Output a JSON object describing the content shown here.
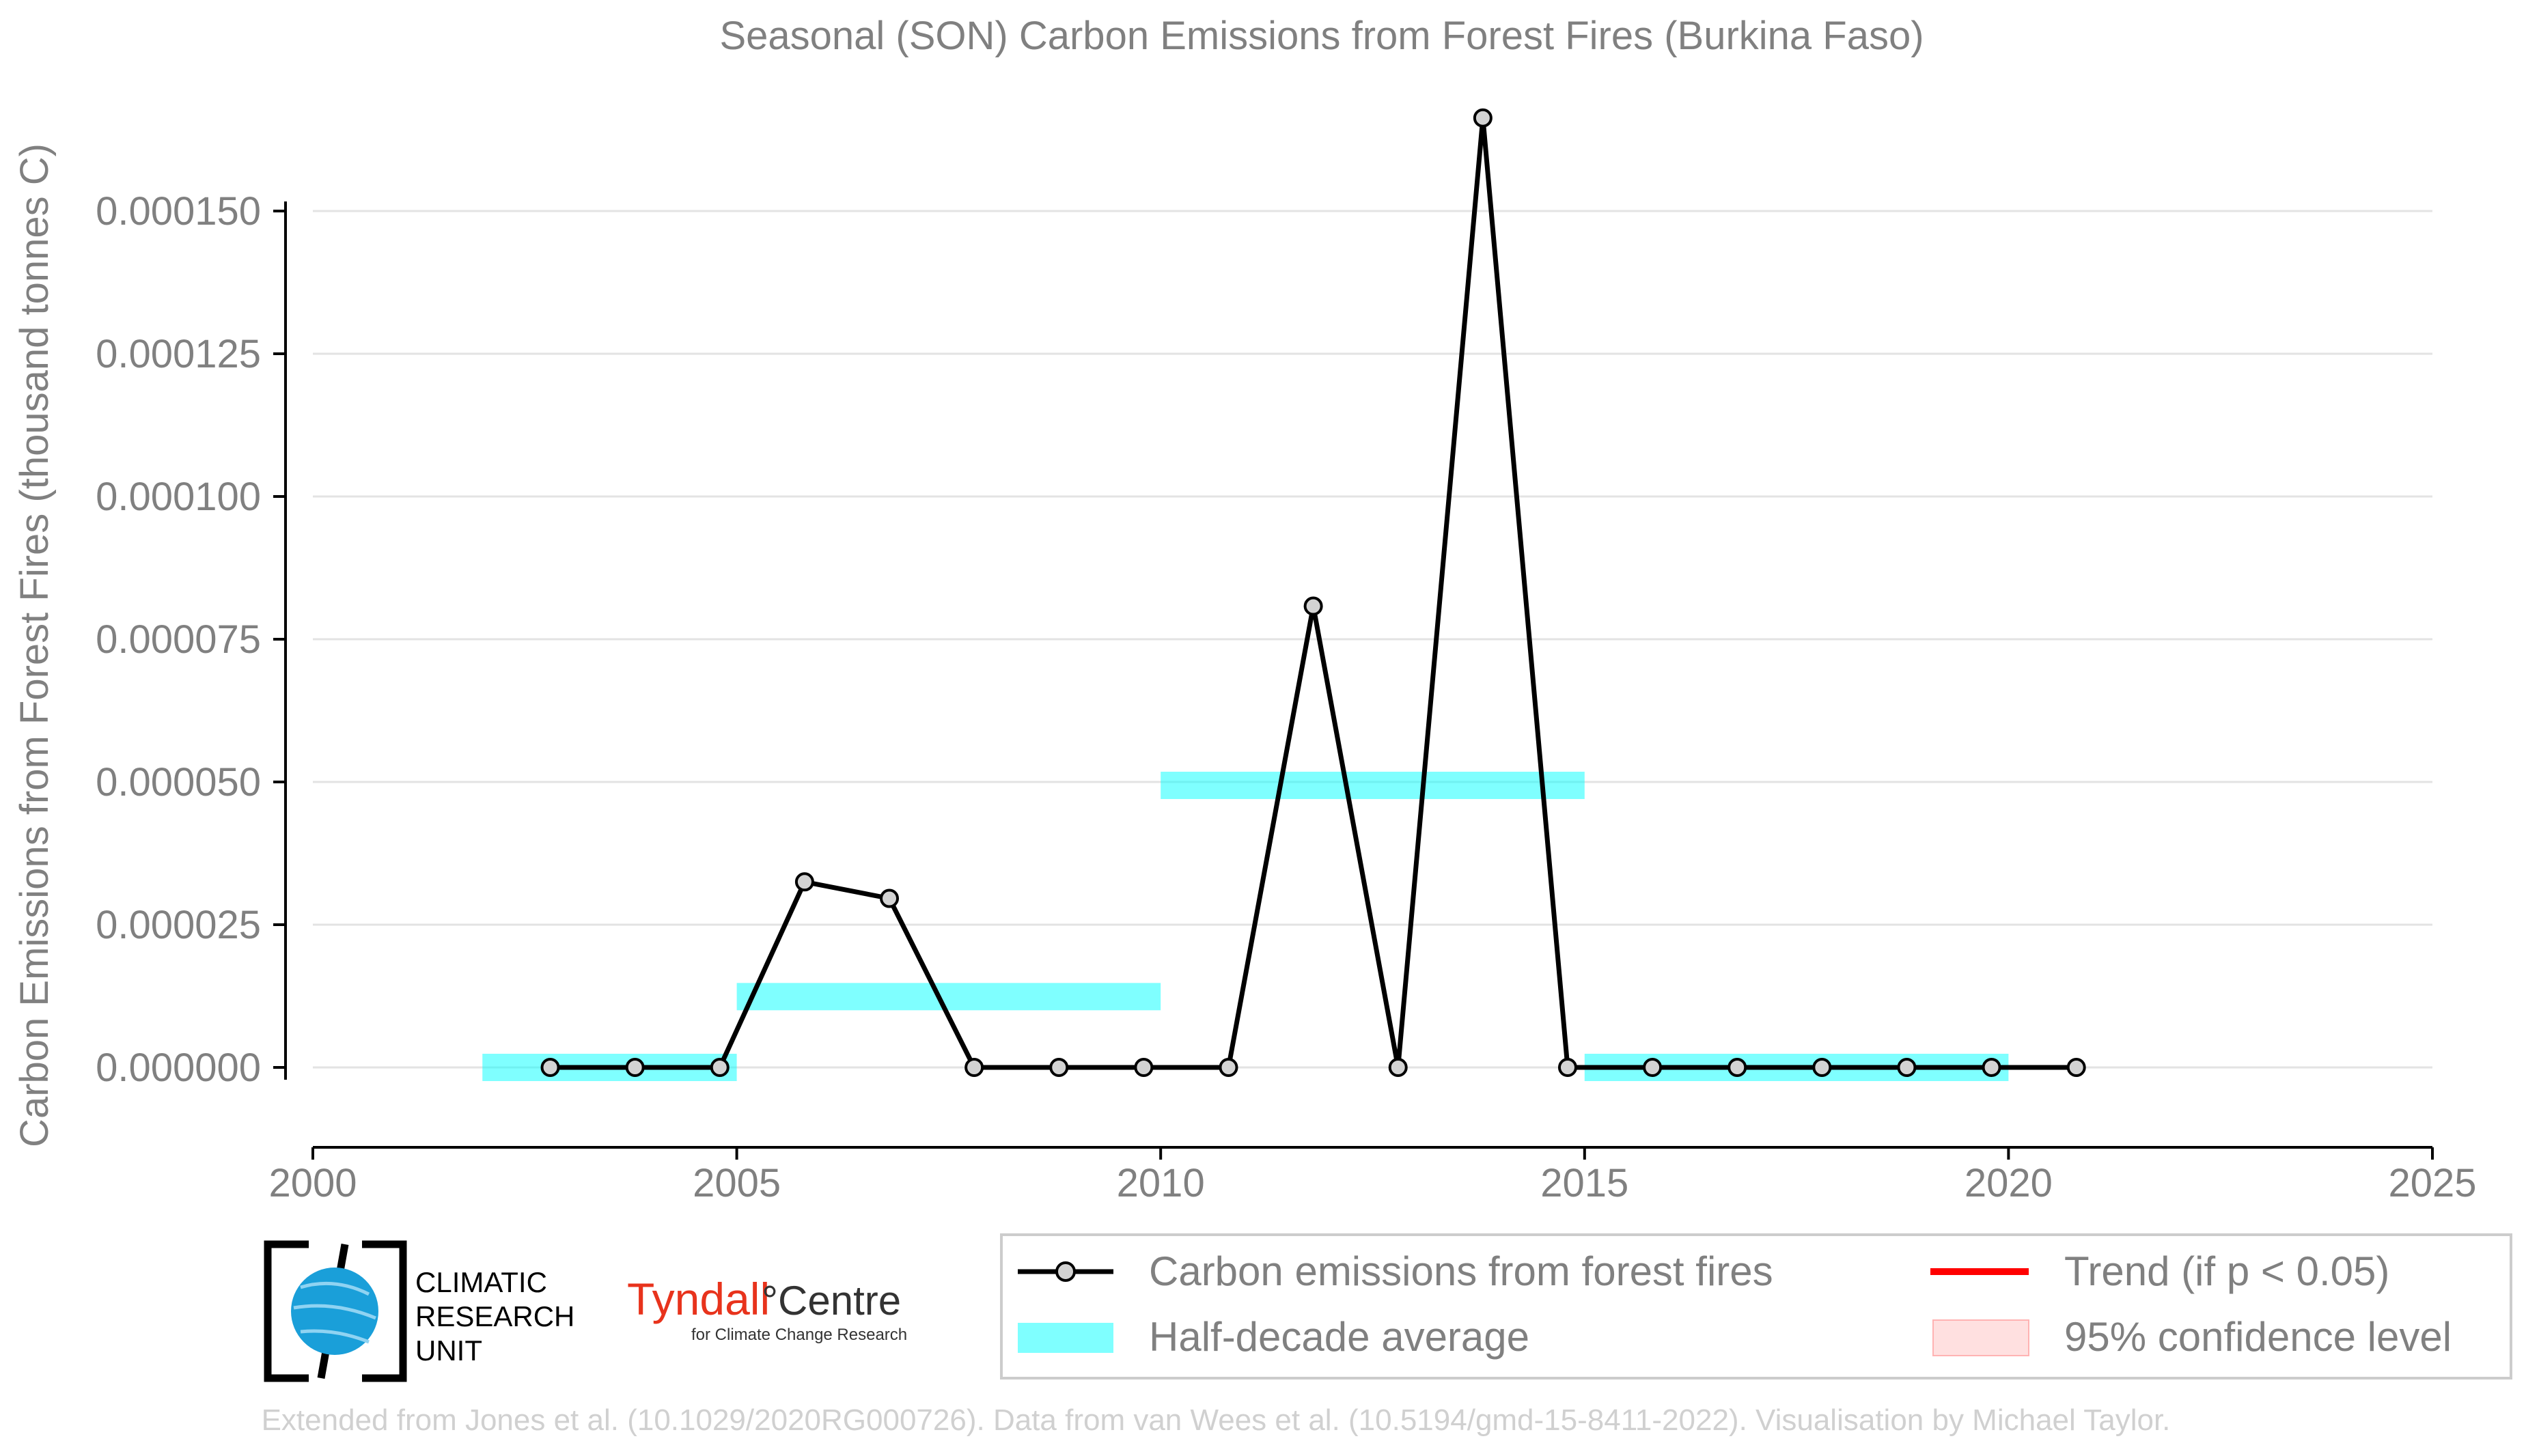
{
  "chart_data": {
    "type": "line",
    "title": "Seasonal (SON) Carbon Emissions from Forest Fires (Burkina Faso)",
    "ylabel": "Carbon Emissions from Forest Fires (thousand tonnes C)",
    "xlabel": "",
    "xlim": [
      2000,
      2025
    ],
    "ylim": [
      -1.3e-05,
      0.000167
    ],
    "x_ticks": [
      2000,
      2005,
      2010,
      2015,
      2020,
      2025
    ],
    "x_tick_labels": [
      "2000",
      "2005",
      "2010",
      "2015",
      "2020",
      "2025"
    ],
    "y_ticks": [
      0,
      2.5e-05,
      5e-05,
      7.5e-05,
      0.0001,
      0.000125,
      0.00015
    ],
    "y_tick_labels": [
      "0.000000",
      "0.000025",
      "0.000050",
      "0.000075",
      "0.000100",
      "0.000125",
      "0.000150"
    ],
    "grid": "horizontal",
    "series": [
      {
        "name": "Carbon emissions from forest fires",
        "color": "#000000",
        "marker_fill": "#d3d3d3",
        "x": [
          2002.8,
          2003.8,
          2004.8,
          2005.8,
          2006.8,
          2007.8,
          2008.8,
          2009.8,
          2010.8,
          2011.8,
          2012.8,
          2013.8,
          2014.8,
          2015.8,
          2016.8,
          2017.8,
          2018.8,
          2019.8,
          2020.8
        ],
        "values": [
          0,
          0,
          0,
          3.25e-05,
          2.96e-05,
          0,
          0,
          0,
          0,
          8.08e-05,
          0,
          0.0001663,
          0,
          0,
          0,
          0,
          0,
          0,
          0
        ]
      }
    ],
    "half_decade_average": {
      "name": "Half-decade average",
      "color": "#00ffff",
      "segments": [
        {
          "x0": 2002,
          "x1": 2005,
          "y": 0
        },
        {
          "x0": 2005,
          "x1": 2010,
          "y": 1.24e-05
        },
        {
          "x0": 2010,
          "x1": 2015,
          "y": 4.94e-05
        },
        {
          "x0": 2015,
          "x1": 2020,
          "y": 0
        }
      ]
    },
    "legend": {
      "placement": "bottom-right",
      "entries": [
        {
          "label": "Carbon emissions from forest fires",
          "kind": "line-marker",
          "color": "#000000"
        },
        {
          "label": "Trend (if p < 0.05)",
          "kind": "line",
          "color": "#ff0000"
        },
        {
          "label": "Half-decade average",
          "kind": "band",
          "color": "#00ffff"
        },
        {
          "label": "95% confidence level",
          "kind": "patch",
          "color": "#ffcccc"
        }
      ]
    }
  },
  "logos": {
    "cru_text": [
      "CLIMATIC",
      "RESEARCH",
      "UNIT"
    ],
    "tyndall_main": "Tyndall",
    "tyndall_centre": "°Centre",
    "tyndall_sub": "for Climate Change Research"
  },
  "footer": {
    "credit": "Extended from Jones et al. (10.1029/2020RG000726). Data from van Wees et al. (10.5194/gmd-15-8411-2022). Visualisation by Michael Taylor."
  },
  "colors": {
    "text_grey": "#808080",
    "grid": "#e3e3e3",
    "credit_grey": "#d0d0d0",
    "tyndall_red": "#e8331c",
    "cru_blue": "#1a9fd9"
  }
}
